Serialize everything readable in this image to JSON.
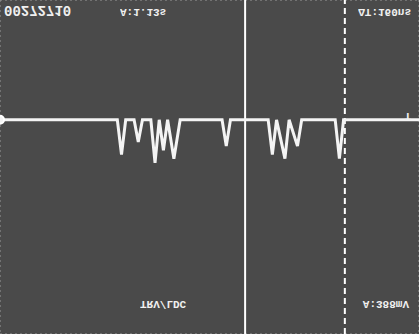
{
  "chart_data": {
    "type": "line",
    "x": [
      0,
      2.8,
      2.9,
      3.0,
      3.2,
      3.3,
      3.4,
      3.6,
      3.7,
      3.8,
      3.9,
      4.0,
      4.15,
      4.3,
      5.3,
      5.4,
      5.5,
      6.4,
      6.5,
      6.6,
      6.8,
      6.9,
      7.1,
      7.2,
      8.0,
      8.1,
      8.2,
      10
    ],
    "values": [
      1.13,
      1.13,
      0.3,
      1.13,
      1.13,
      0.6,
      1.13,
      1.13,
      0.1,
      1.13,
      0.4,
      1.13,
      0.2,
      1.13,
      1.13,
      0.5,
      1.13,
      1.13,
      0.3,
      1.13,
      0.2,
      1.13,
      0.5,
      1.13,
      1.13,
      0.2,
      1.13,
      1.13
    ],
    "color": "#f4f4f4",
    "xlim": [
      0,
      10
    ],
    "ylim": [
      -4,
      4
    ],
    "xticks": [
      0,
      1,
      2,
      3,
      4,
      5,
      6,
      7,
      8,
      9,
      10
    ],
    "yticks": [
      -4,
      -3,
      -2,
      -1,
      0,
      1,
      2,
      3,
      4
    ],
    "grid": true,
    "tick_labels": false,
    "cursors": [
      5.85,
      8.23
    ],
    "annotations": [
      "00272710",
      "A:1.13s",
      "ΔT:160ns",
      "T",
      "TRV/LDC",
      "A:388mV"
    ]
  }
}
